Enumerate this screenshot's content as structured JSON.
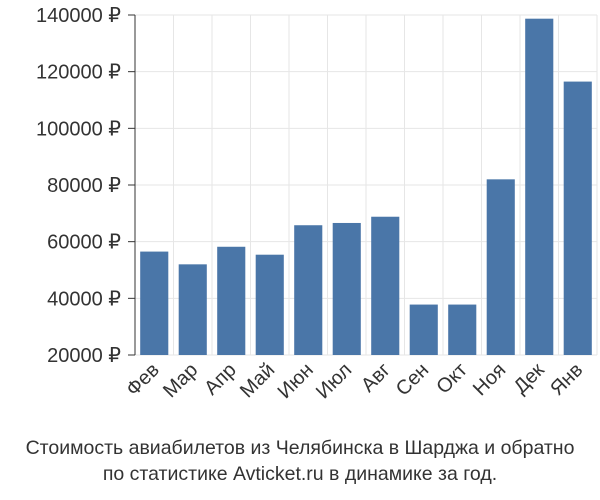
{
  "chart_data": {
    "type": "bar",
    "categories": [
      "Фев",
      "Мар",
      "Апр",
      "Май",
      "Июн",
      "Июл",
      "Авг",
      "Сен",
      "Окт",
      "Ноя",
      "Дек",
      "Янв"
    ],
    "values": [
      56500,
      52000,
      58200,
      55400,
      65800,
      66600,
      68800,
      37800,
      37800,
      82000,
      138700,
      116500
    ],
    "ylim": [
      20000,
      140000
    ],
    "yticks": [
      20000,
      40000,
      60000,
      80000,
      100000,
      120000,
      140000
    ],
    "ytick_labels": [
      "20000 ₽",
      "40000 ₽",
      "60000 ₽",
      "80000 ₽",
      "100000 ₽",
      "120000 ₽",
      "140000 ₽"
    ],
    "grid": true,
    "bar_color": "#4a76a8",
    "grid_color": "#e6e6e6",
    "caption": [
      "Стоимость авиабилетов из Челябинска в Шарджа и обратно",
      "по статистике Avticket.ru в динамике за год."
    ]
  }
}
